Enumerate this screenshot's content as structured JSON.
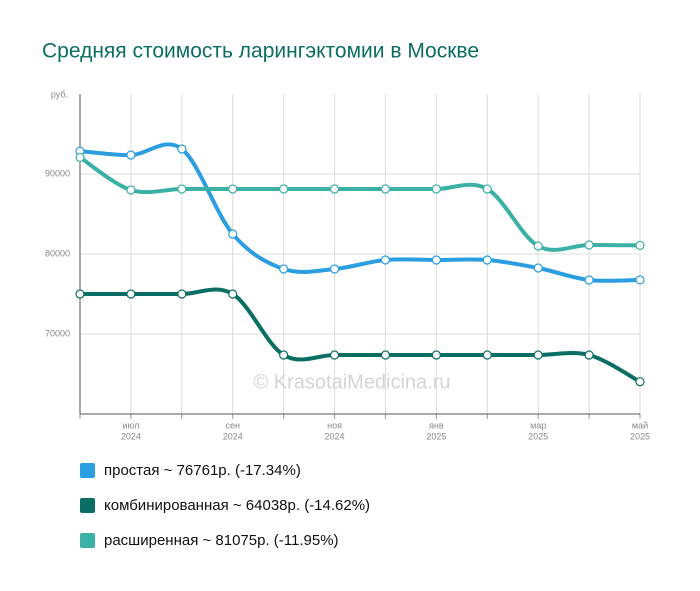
{
  "chart_data": {
    "type": "line",
    "title": "Средняя стоимость ларингэктомии в Москве",
    "y_unit": "руб.",
    "watermark": "© KrasotaiMedicina.ru",
    "categories": [
      null,
      [
        "июл",
        "2024"
      ],
      null,
      [
        "сен",
        "2024"
      ],
      null,
      [
        "ноя",
        "2024"
      ],
      null,
      [
        "янв",
        "2025"
      ],
      null,
      [
        "мар",
        "2025"
      ],
      null,
      [
        "май",
        "2025"
      ]
    ],
    "series": [
      {
        "name": "простая ~ 76761р. (-17.34%)",
        "color": "#2a9ee0",
        "values": [
          92864,
          92375,
          93125,
          82500,
          78125,
          78125,
          79250,
          79250,
          79250,
          78250,
          76750,
          76761
        ]
      },
      {
        "name": "комбинированная ~ 64038р. (-14.62%)",
        "color": "#0b6e65",
        "values": [
          75000,
          75000,
          75000,
          75000,
          67375,
          67375,
          67375,
          67375,
          67375,
          67375,
          67375,
          64038
        ]
      },
      {
        "name": "расширенная ~ 81075р. (-11.95%)",
        "color": "#3bb0a6",
        "values": [
          92078,
          88000,
          88125,
          88125,
          88125,
          88125,
          88125,
          88125,
          88125,
          81000,
          81125,
          81075
        ]
      }
    ],
    "ylim": [
      60000,
      100000
    ],
    "yticks": [
      70000,
      80000,
      90000
    ],
    "grid": true
  }
}
